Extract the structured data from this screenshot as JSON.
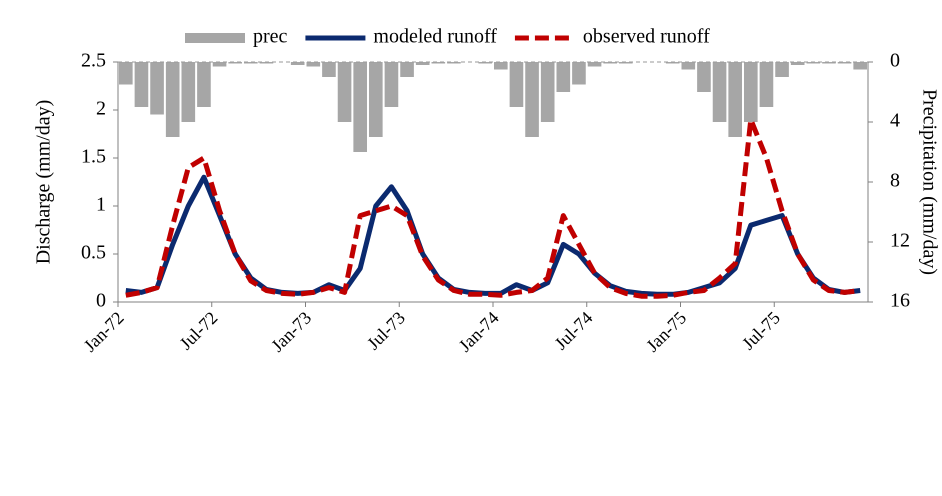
{
  "chart_data": {
    "type": "line",
    "x": [
      "1972-01",
      "1972-02",
      "1972-03",
      "1972-04",
      "1972-05",
      "1972-06",
      "1972-07",
      "1972-08",
      "1972-09",
      "1972-10",
      "1972-11",
      "1972-12",
      "1973-01",
      "1973-02",
      "1973-03",
      "1973-04",
      "1973-05",
      "1973-06",
      "1973-07",
      "1973-08",
      "1973-09",
      "1973-10",
      "1973-11",
      "1973-12",
      "1974-01",
      "1974-02",
      "1974-03",
      "1974-04",
      "1974-05",
      "1974-06",
      "1974-07",
      "1974-08",
      "1974-09",
      "1974-10",
      "1974-11",
      "1974-12",
      "1975-01",
      "1975-02",
      "1975-03",
      "1975-04",
      "1975-05",
      "1975-06",
      "1975-07",
      "1975-08",
      "1975-09",
      "1975-10",
      "1975-11",
      "1975-12"
    ],
    "series": [
      {
        "name": "prec",
        "color": "#a6a6a6",
        "axis": "y2",
        "kind": "bar",
        "values": [
          1.5,
          3,
          3.5,
          5,
          4,
          3,
          0.3,
          0.1,
          0.1,
          0.1,
          0,
          0.2,
          0.3,
          1,
          4,
          6,
          5,
          3,
          1,
          0.2,
          0.1,
          0.1,
          0,
          0.1,
          0.5,
          3,
          5,
          4,
          2,
          1.5,
          0.3,
          0.1,
          0.1,
          0,
          0,
          0.1,
          0.5,
          2,
          4,
          5,
          4,
          3,
          1,
          0.2,
          0.1,
          0.1,
          0.1,
          0.5
        ]
      },
      {
        "name": "modeled runoff",
        "color": "#0b2a6f",
        "kind": "solid",
        "values": [
          0.12,
          0.1,
          0.15,
          0.6,
          1.0,
          1.3,
          0.9,
          0.5,
          0.25,
          0.13,
          0.1,
          0.09,
          0.1,
          0.18,
          0.12,
          0.35,
          1.0,
          1.2,
          0.95,
          0.5,
          0.25,
          0.13,
          0.1,
          0.09,
          0.09,
          0.18,
          0.12,
          0.2,
          0.6,
          0.5,
          0.3,
          0.17,
          0.11,
          0.09,
          0.08,
          0.08,
          0.1,
          0.15,
          0.2,
          0.35,
          0.8,
          0.85,
          0.9,
          0.5,
          0.25,
          0.13,
          0.1,
          0.12
        ]
      },
      {
        "name": "observed runoff",
        "color": "#c00000",
        "kind": "dashed",
        "values": [
          0.07,
          0.1,
          0.15,
          0.8,
          1.4,
          1.5,
          0.95,
          0.5,
          0.22,
          0.12,
          0.09,
          0.08,
          0.1,
          0.15,
          0.1,
          0.9,
          0.95,
          1.0,
          0.9,
          0.48,
          0.23,
          0.12,
          0.08,
          0.08,
          0.07,
          0.1,
          0.12,
          0.25,
          0.9,
          0.6,
          0.3,
          0.15,
          0.09,
          0.06,
          0.06,
          0.07,
          0.1,
          0.12,
          0.25,
          0.4,
          1.9,
          1.5,
          0.95,
          0.5,
          0.23,
          0.12,
          0.1,
          0.12
        ]
      }
    ],
    "xticks": [
      {
        "value": "1972-01",
        "label": "Jan-72"
      },
      {
        "value": "1972-07",
        "label": "Jul-72"
      },
      {
        "value": "1973-01",
        "label": "Jan-73"
      },
      {
        "value": "1973-07",
        "label": "Jul-73"
      },
      {
        "value": "1974-01",
        "label": "Jan-74"
      },
      {
        "value": "1974-07",
        "label": "Jul-74"
      },
      {
        "value": "1975-01",
        "label": "Jan-75"
      },
      {
        "value": "1975-07",
        "label": "Jul-75"
      }
    ],
    "ylim": [
      0,
      2.5
    ],
    "yticks": [
      0,
      0.5,
      1,
      1.5,
      2,
      2.5
    ],
    "y2lim": [
      16,
      0
    ],
    "y2ticks": [
      0,
      4,
      8,
      12,
      16
    ],
    "ylabel": "Discharge (mm/day)",
    "y2label": "Precipitation (mm/day)"
  }
}
